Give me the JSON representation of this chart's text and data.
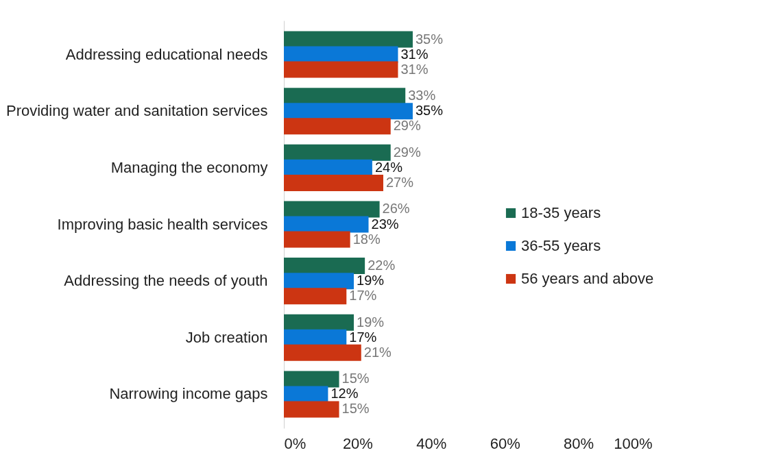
{
  "chart_data": {
    "type": "bar",
    "orientation": "horizontal",
    "categories": [
      "Addressing educational needs",
      "Providing water and sanitation services",
      "Managing the economy",
      "Improving basic health services",
      "Addressing the needs of youth",
      "Job creation",
      "Narrowing income gaps"
    ],
    "series": [
      {
        "name": "18-35 years",
        "color": "#1a6b52",
        "values": [
          35,
          33,
          29,
          26,
          22,
          19,
          15
        ],
        "value_labels": [
          "35%",
          "33%",
          "29%",
          "26%",
          "22%",
          "19%",
          "15%"
        ]
      },
      {
        "name": "36-55 years",
        "color": "#0a78d7",
        "values": [
          31,
          35,
          24,
          23,
          19,
          17,
          12
        ],
        "value_labels": [
          "31%",
          "35%",
          "24%",
          "23%",
          "19%",
          "17%",
          "12%"
        ]
      },
      {
        "name": "56 years and above",
        "color": "#cc3512",
        "values": [
          31,
          29,
          27,
          18,
          17,
          21,
          15
        ],
        "value_labels": [
          "31%",
          "29%",
          "27%",
          "18%",
          "17%",
          "21%",
          "15%"
        ]
      }
    ],
    "xlim": [
      0,
      100
    ],
    "xticks": [
      {
        "value": 0,
        "label": "0%"
      },
      {
        "value": 20,
        "label": "20%"
      },
      {
        "value": 40,
        "label": "40%"
      },
      {
        "value": 60,
        "label": "60%"
      },
      {
        "value": 80,
        "label": "80%"
      },
      {
        "value": 100,
        "label": "100%"
      }
    ],
    "grid": false,
    "legend": "right"
  }
}
